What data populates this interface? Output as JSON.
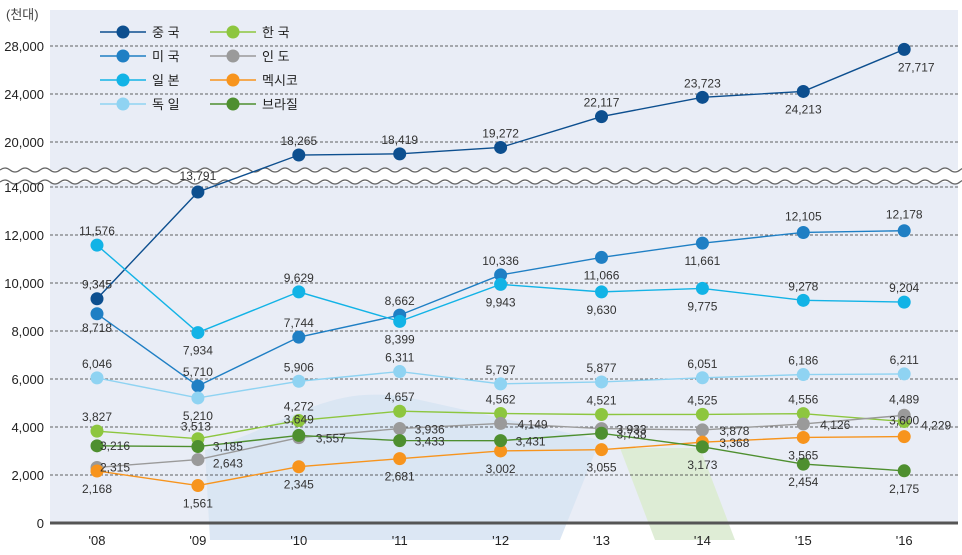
{
  "chart_data": {
    "type": "line",
    "unit_label": "(천대)",
    "categories": [
      "'08",
      "'09",
      "'10",
      "'11",
      "'12",
      "'13",
      "'14",
      "'15",
      "'16"
    ],
    "y_ticks": [
      0,
      2000,
      4000,
      6000,
      8000,
      10000,
      12000,
      14000,
      20000,
      24000,
      28000
    ],
    "y_tick_labels": [
      "0",
      "2,000",
      "4,000",
      "6,000",
      "8,000",
      "10,000",
      "12,000",
      "14,000",
      "20,000",
      "24,000",
      "28,000"
    ],
    "axis_break": {
      "from": 14000,
      "to": 20000
    },
    "grid": true,
    "legend_position": "top-left",
    "series": [
      {
        "name": "중  국",
        "color": "#0d4f8f",
        "values": [
          9345,
          13791,
          18265,
          18419,
          19272,
          22117,
          23723,
          24213,
          27717
        ],
        "labels": [
          "9,345",
          "13,791",
          "18,265",
          "18,419",
          "19,272",
          "22,117",
          "23,723",
          "24,213",
          "27,717"
        ]
      },
      {
        "name": "미  국",
        "color": "#1f7fc4",
        "values": [
          8718,
          5710,
          7744,
          8662,
          10336,
          11066,
          11661,
          12105,
          12178
        ],
        "labels": [
          "8,718",
          "5,710",
          "7,744",
          "8,662",
          "10,336",
          "11,066",
          "11,661",
          "12,105",
          "12,178"
        ]
      },
      {
        "name": "일  본",
        "color": "#12b3e6",
        "values": [
          11576,
          7934,
          9629,
          8399,
          9943,
          9630,
          9775,
          9278,
          9204
        ],
        "labels": [
          "11,576",
          "7,934",
          "9,629",
          "8,399",
          "9,943",
          "9,630",
          "9,775",
          "9,278",
          "9,204"
        ]
      },
      {
        "name": "독  일",
        "color": "#8fd3f2",
        "values": [
          6046,
          5210,
          5906,
          6311,
          5797,
          5877,
          6051,
          6186,
          6211
        ],
        "labels": [
          "6,046",
          "5,210",
          "5,906",
          "6,311",
          "5,797",
          "5,877",
          "6,051",
          "6,186",
          "6,211"
        ]
      },
      {
        "name": "한  국",
        "color": "#8dc63f",
        "values": [
          3827,
          3513,
          4272,
          4657,
          4562,
          4521,
          4525,
          4556,
          4229
        ],
        "labels": [
          "3,827",
          "3,513",
          "4,272",
          "4,657",
          "4,562",
          "4,521",
          "4,525",
          "4,556",
          "4,229"
        ]
      },
      {
        "name": "인  도",
        "color": "#9a9a9a",
        "values": [
          2315,
          2643,
          3557,
          3936,
          4149,
          3933,
          3878,
          4126,
          4489
        ],
        "labels": [
          "2,315",
          "2,643",
          "3,557",
          "3,936",
          "4,149",
          "3,933",
          "3,878",
          "4,126",
          "4,489"
        ]
      },
      {
        "name": "멕시코",
        "color": "#f7941d",
        "values": [
          2168,
          1561,
          2345,
          2681,
          3002,
          3055,
          3368,
          3565,
          3600
        ],
        "labels": [
          "2,168",
          "1,561",
          "2,345",
          "2,681",
          "3,002",
          "3,055",
          "3,368",
          "3,565",
          "3,600"
        ]
      },
      {
        "name": "브라질",
        "color": "#4e8f2f",
        "values": [
          3216,
          3185,
          3649,
          3433,
          3431,
          3738,
          3173,
          2454,
          2175
        ],
        "labels": [
          "3,216",
          "3,185",
          "3,649",
          "3,433",
          "3,431",
          "3,738",
          "3,173",
          "2,454",
          "2,175"
        ]
      }
    ]
  }
}
